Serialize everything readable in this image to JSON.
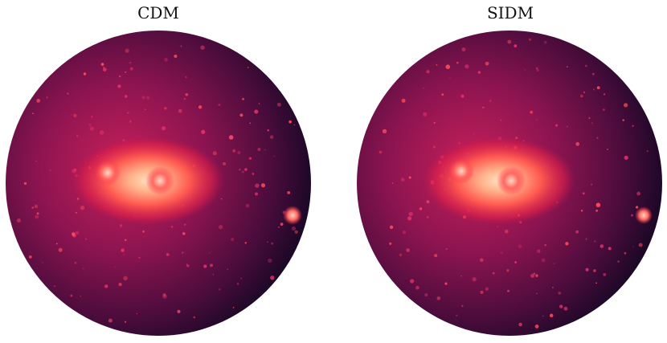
{
  "panels": [
    {
      "title": "CDM"
    },
    {
      "title": "SIDM"
    }
  ]
}
